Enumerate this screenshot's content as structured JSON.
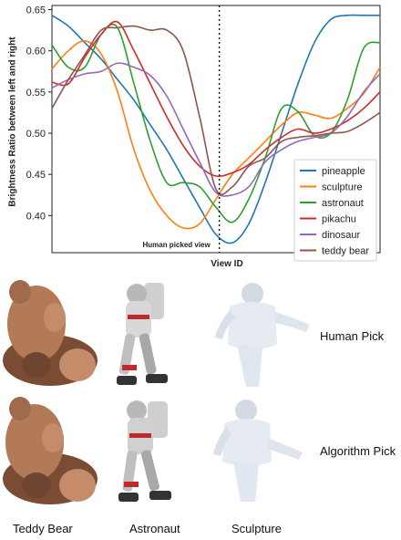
{
  "chart_data": {
    "type": "line",
    "title": "",
    "xlabel": "View ID",
    "ylabel": "Brightness Ratio between left and right",
    "ylim": [
      0.355,
      0.655
    ],
    "xlim": [
      0,
      100
    ],
    "yticks": [
      "0.40",
      "0.45",
      "0.50",
      "0.55",
      "0.60",
      "0.65"
    ],
    "ytick_values": [
      0.4,
      0.45,
      0.5,
      0.55,
      0.6,
      0.65
    ],
    "grid": false,
    "legend_position": "bottom-right",
    "annotation": {
      "text": "Human picked view",
      "x": 51
    },
    "x": [
      0,
      5,
      10,
      15,
      20,
      25,
      30,
      35,
      40,
      45,
      50,
      55,
      60,
      65,
      70,
      75,
      80,
      85,
      90,
      95,
      100
    ],
    "series": [
      {
        "name": "pineapple",
        "color": "#1f77b4",
        "values": [
          0.643,
          0.63,
          0.61,
          0.59,
          0.565,
          0.54,
          0.51,
          0.48,
          0.445,
          0.41,
          0.377,
          0.367,
          0.39,
          0.44,
          0.5,
          0.56,
          0.61,
          0.638,
          0.643,
          0.643,
          0.643
        ]
      },
      {
        "name": "sculpture",
        "color": "#ff7f0e",
        "values": [
          0.578,
          0.6,
          0.612,
          0.596,
          0.55,
          0.48,
          0.43,
          0.4,
          0.385,
          0.39,
          0.42,
          0.45,
          0.47,
          0.49,
          0.51,
          0.525,
          0.522,
          0.518,
          0.53,
          0.548,
          0.58
        ]
      },
      {
        "name": "astronaut",
        "color": "#2ca02c",
        "values": [
          0.607,
          0.58,
          0.58,
          0.62,
          0.628,
          0.56,
          0.49,
          0.44,
          0.44,
          0.435,
          0.41,
          0.392,
          0.42,
          0.47,
          0.53,
          0.526,
          0.497,
          0.5,
          0.54,
          0.603,
          0.61
        ]
      },
      {
        "name": "pikachu",
        "color": "#d62728",
        "values": [
          0.562,
          0.56,
          0.592,
          0.62,
          0.635,
          0.6,
          0.56,
          0.52,
          0.485,
          0.46,
          0.448,
          0.452,
          0.462,
          0.48,
          0.495,
          0.505,
          0.5,
          0.505,
          0.515,
          0.53,
          0.55
        ]
      },
      {
        "name": "dinosaur",
        "color": "#9467bd",
        "values": [
          0.555,
          0.565,
          0.572,
          0.575,
          0.585,
          0.58,
          0.57,
          0.545,
          0.505,
          0.465,
          0.428,
          0.425,
          0.435,
          0.465,
          0.48,
          0.49,
          0.495,
          0.5,
          0.52,
          0.55,
          0.572
        ]
      },
      {
        "name": "teddy bear",
        "color": "#8c564b",
        "values": [
          0.53,
          0.565,
          0.595,
          0.625,
          0.628,
          0.63,
          0.625,
          0.625,
          0.6,
          0.52,
          0.432,
          0.435,
          0.46,
          0.47,
          0.49,
          0.495,
          0.497,
          0.5,
          0.502,
          0.512,
          0.525
        ]
      }
    ]
  },
  "figure": {
    "row_labels": [
      "Human Pick",
      "Algorithm Pick"
    ],
    "column_labels": [
      "Teddy Bear",
      "Astronaut",
      "Sculpture"
    ]
  },
  "colors": {
    "teddy_fur": "#b37a58",
    "teddy_shadow": "#6e4530",
    "astronaut_suit": "#d8d8d8",
    "astronaut_accent": "#c0292b",
    "sculpture_marble": "#e6ebf2"
  }
}
